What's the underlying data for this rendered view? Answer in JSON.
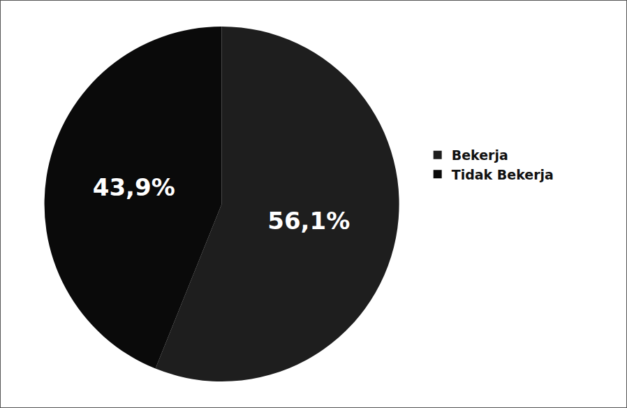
{
  "chart_data": {
    "type": "pie",
    "categories": [
      "Bekerja",
      "Tidak Bekerja"
    ],
    "values": [
      56.1,
      43.9
    ],
    "value_labels": [
      "56,1%",
      "43,9%"
    ],
    "colors": [
      "#1e1e1e",
      "#0a0a0a"
    ],
    "data_labels": true,
    "legend": "right"
  }
}
